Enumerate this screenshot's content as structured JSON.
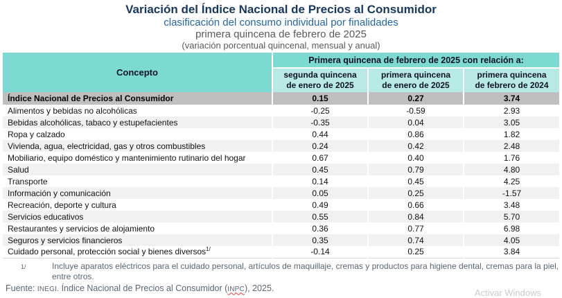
{
  "title": {
    "line1": "Variación del Índice Nacional de Precios al Consumidor",
    "line2": "clasificación del consumo individual por finalidades",
    "line3": "primera quincena de febrero de 2025",
    "line4": "(variación porcentual quincenal, mensual y anual)"
  },
  "table": {
    "concept_header": "Concepto",
    "group_header": "Primera quincena de febrero de 2025 con relación a:",
    "col_headers": [
      "segunda quincena\nde enero de 2025",
      "primera quincena\nde enero de 2025",
      "primera quincena\nde febrero de 2024"
    ],
    "total_row": {
      "concept": "Índice Nacional de Precios al Consumidor",
      "values": [
        "0.15",
        "0.27",
        "3.74"
      ]
    },
    "rows": [
      {
        "concept": "Alimentos y bebidas no alcohólicas",
        "values": [
          "-0.25",
          "-0.59",
          "2.93"
        ]
      },
      {
        "concept": "Bebidas alcohólicas, tabaco y estupefacientes",
        "values": [
          "-0.35",
          "0.04",
          "3.05"
        ]
      },
      {
        "concept": "Ropa y calzado",
        "values": [
          "0.44",
          "0.86",
          "1.82"
        ]
      },
      {
        "concept": "Vivienda, agua, electricidad, gas y otros combustibles",
        "values": [
          "0.24",
          "0.42",
          "2.48"
        ]
      },
      {
        "concept": "Mobiliario, equipo doméstico y mantenimiento rutinario del hogar",
        "values": [
          "0.67",
          "0.40",
          "1.76"
        ]
      },
      {
        "concept": "Salud",
        "values": [
          "0.45",
          "0.79",
          "4.80"
        ]
      },
      {
        "concept": "Transporte",
        "values": [
          "0.14",
          "0.45",
          "4.25"
        ]
      },
      {
        "concept": "Información y comunicación",
        "values": [
          "0.05",
          "0.25",
          "-1.57"
        ]
      },
      {
        "concept": "Recreación, deporte y cultura",
        "values": [
          "0.49",
          "0.66",
          "3.48"
        ]
      },
      {
        "concept": "Servicios educativos",
        "values": [
          "0.55",
          "0.84",
          "5.70"
        ]
      },
      {
        "concept": "Restaurantes y servicios de alojamiento",
        "values": [
          "0.36",
          "0.77",
          "6.98"
        ]
      },
      {
        "concept": "Seguros y servicios financieros",
        "values": [
          "0.35",
          "0.74",
          "4.05"
        ]
      },
      {
        "concept": "Cuidado personal, protección social y bienes diversos",
        "sup": "1/",
        "values": [
          "-0.14",
          "0.25",
          "3.84"
        ]
      }
    ]
  },
  "footnote": {
    "marker": "1/",
    "text": "Incluye aparatos eléctricos para el cuidado personal, artículos de maquillaje, cremas y productos para higiene dental, cremas para la piel, entre otros."
  },
  "source": {
    "label": "Fuente:",
    "org": "INEGI.",
    "text": "Índice Nacional de Precios al Consumidor (",
    "acronym": "INPC",
    "tail": "), 2025."
  },
  "watermark": "Activar Windows",
  "colors": {
    "title_navy": "#17375E",
    "subtitle_blue": "#2566A3",
    "header_teal": "#7CDAD3",
    "subheader_teal": "#B8EAE5",
    "total_row_gray": "#BFBFBF",
    "stripe_gray": "#F1F1F1",
    "footnote_gray": "#5A6672",
    "spellcheck_red": "#E03A3A"
  }
}
